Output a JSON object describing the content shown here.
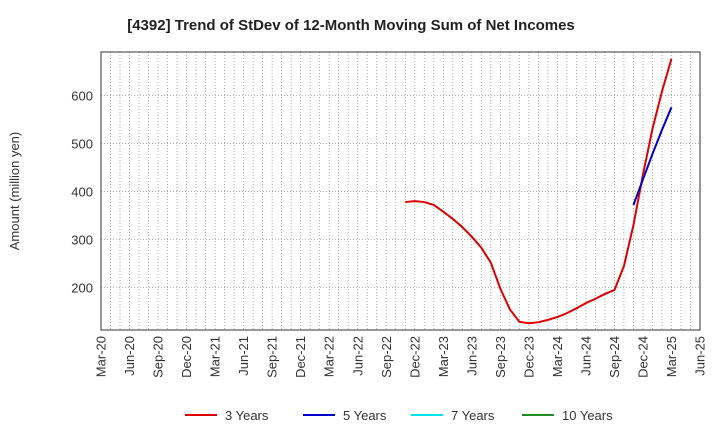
{
  "chart_data": {
    "type": "line",
    "title": "[4392]  Trend of StDev of 12-Month Moving Sum of Net Incomes",
    "ylabel": "Amount (million yen)",
    "xlabel": "",
    "ylim": [
      112,
      690
    ],
    "yticks": [
      200,
      300,
      400,
      500,
      600
    ],
    "x_start": "Mar-20",
    "x_end": "Jun-25",
    "xticks": [
      "Mar-20",
      "Jun-20",
      "Sep-20",
      "Dec-20",
      "Mar-21",
      "Jun-21",
      "Sep-21",
      "Dec-21",
      "Mar-22",
      "Jun-22",
      "Sep-22",
      "Dec-22",
      "Mar-23",
      "Jun-23",
      "Sep-23",
      "Dec-23",
      "Mar-24",
      "Jun-24",
      "Sep-24",
      "Dec-24",
      "Mar-25",
      "Jun-25"
    ],
    "grid": true,
    "legend_position": "bottom",
    "series": [
      {
        "name": "3 Years",
        "color": "#dd0000",
        "points": [
          [
            "Nov-22",
            378
          ],
          [
            "Dec-22",
            380
          ],
          [
            "Jan-23",
            378
          ],
          [
            "Feb-23",
            372
          ],
          [
            "Mar-23",
            358
          ],
          [
            "Apr-23",
            343
          ],
          [
            "May-23",
            326
          ],
          [
            "Jun-23",
            306
          ],
          [
            "Jul-23",
            283
          ],
          [
            "Aug-23",
            252
          ],
          [
            "Sep-23",
            198
          ],
          [
            "Oct-23",
            155
          ],
          [
            "Nov-23",
            129
          ],
          [
            "Dec-23",
            126
          ],
          [
            "Jan-24",
            128
          ],
          [
            "Feb-24",
            133
          ],
          [
            "Mar-24",
            139
          ],
          [
            "Apr-24",
            147
          ],
          [
            "May-24",
            157
          ],
          [
            "Jun-24",
            168
          ],
          [
            "Jul-24",
            177
          ],
          [
            "Aug-24",
            187
          ],
          [
            "Sep-24",
            195
          ],
          [
            "Oct-24",
            245
          ],
          [
            "Nov-24",
            330
          ],
          [
            "Dec-24",
            435
          ],
          [
            "Jan-25",
            530
          ],
          [
            "Feb-25",
            608
          ],
          [
            "Mar-25",
            676
          ]
        ]
      },
      {
        "name": "5 Years",
        "color": "#0000cc",
        "points": [
          [
            "Nov-24",
            372
          ],
          [
            "Dec-24",
            425
          ],
          [
            "Jan-25",
            478
          ],
          [
            "Feb-25",
            528
          ],
          [
            "Mar-25",
            575
          ]
        ]
      },
      {
        "name": "7 Years",
        "color": "#00e5ee",
        "points": []
      },
      {
        "name": "10 Years",
        "color": "#228b22",
        "points": []
      }
    ]
  }
}
